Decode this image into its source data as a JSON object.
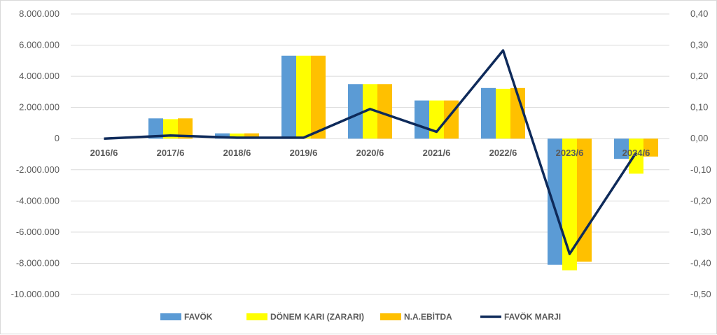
{
  "chart_data": {
    "type": "bar",
    "categories": [
      "2016/6",
      "2017/6",
      "2018/6",
      "2019/6",
      "2020/6",
      "2021/6",
      "2022/6",
      "2023/6",
      "2024/6"
    ],
    "series": [
      {
        "name": "FAVÖK",
        "type": "bar",
        "axis": "left",
        "color": "#5b9bd5",
        "values": [
          0,
          1300000,
          340000,
          5320000,
          3500000,
          2450000,
          3250000,
          -8100000,
          -1300000
        ]
      },
      {
        "name": "DÖNEM KARI (ZARARI)",
        "type": "bar",
        "axis": "left",
        "color": "#ffff00",
        "values": [
          0,
          1250000,
          330000,
          5320000,
          3500000,
          2450000,
          3200000,
          -8450000,
          -2250000
        ]
      },
      {
        "name": "N.A.EBİTDA",
        "type": "bar",
        "axis": "left",
        "color": "#ffc000",
        "values": [
          0,
          1300000,
          340000,
          5320000,
          3500000,
          2450000,
          3250000,
          -7900000,
          -1150000
        ]
      },
      {
        "name": "FAVÖK MARJI",
        "type": "line",
        "axis": "right",
        "color": "#0e2a5a",
        "values": [
          0.0,
          0.01,
          0.003,
          0.003,
          0.095,
          0.022,
          0.283,
          -0.37,
          -0.045
        ]
      }
    ],
    "left_axis": {
      "ylim": [
        -10000000,
        8000000
      ],
      "ticks": [
        8000000,
        6000000,
        4000000,
        2000000,
        0,
        -2000000,
        -4000000,
        -6000000,
        -8000000,
        -10000000
      ],
      "tick_labels": [
        "8.000.000",
        "6.000.000",
        "4.000.000",
        "2.000.000",
        "0",
        "-2.000.000",
        "-4.000.000",
        "-6.000.000",
        "-8.000.000",
        "-10.000.000"
      ]
    },
    "right_axis": {
      "ylim": [
        -0.5,
        0.4
      ],
      "ticks": [
        0.4,
        0.3,
        0.2,
        0.1,
        0.0,
        -0.1,
        -0.2,
        -0.3,
        -0.4,
        -0.5
      ],
      "tick_labels": [
        "0,40",
        "0,30",
        "0,20",
        "0,10",
        "0,00",
        "-0,10",
        "-0,20",
        "-0,30",
        "-0,40",
        "-0,50"
      ]
    },
    "grid": true,
    "legend_position": "bottom",
    "title": "",
    "xlabel": "",
    "ylabel": ""
  }
}
